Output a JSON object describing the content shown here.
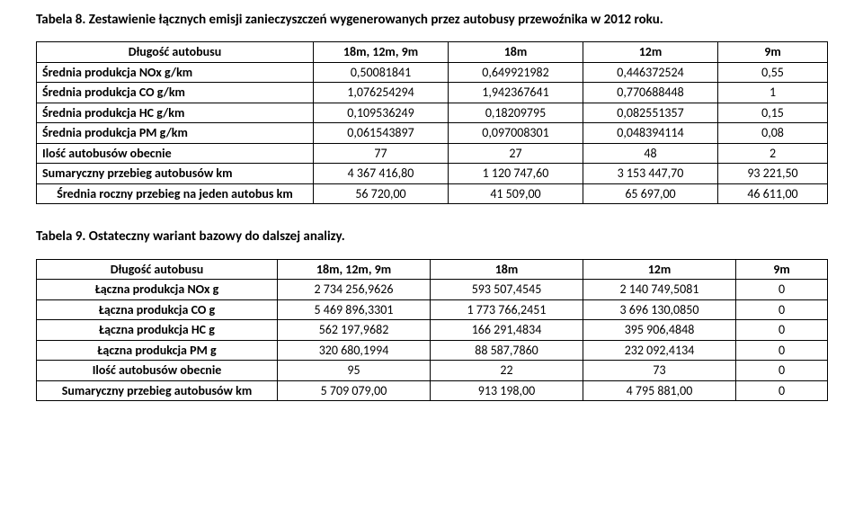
{
  "caption1_a": "Tabela 8.",
  "caption1_b": " Zestawienie łącznych emisji zanieczyszczeń wygenerowanych przez autobusy przewoźnika w 2012 roku.",
  "t1": {
    "cols": [
      "Długość autobusu",
      "18m, 12m, 9m",
      "18m",
      "12m",
      "9m"
    ],
    "rows": [
      {
        "label": "Średnia produkcja NOx g/km",
        "v": [
          "0,50081841",
          "0,649921982",
          "0,446372524",
          "0,55"
        ]
      },
      {
        "label": "Średnia produkcja CO g/km",
        "v": [
          "1,076254294",
          "1,942367641",
          "0,770688448",
          "1"
        ]
      },
      {
        "label": "Średnia produkcja HC g/km",
        "v": [
          "0,109536249",
          "0,18209795",
          "0,082551357",
          "0,15"
        ]
      },
      {
        "label": "Średnia produkcja PM g/km",
        "v": [
          "0,061543897",
          "0,097008301",
          "0,048394114",
          "0,08"
        ]
      },
      {
        "label": "Ilość autobusów obecnie",
        "v": [
          "77",
          "27",
          "48",
          "2"
        ]
      },
      {
        "label": "Sumaryczny przebieg autobusów km",
        "v": [
          "4 367 416,80",
          "1 120 747,60",
          "3 153 447,70",
          "93 221,50"
        ]
      },
      {
        "label": "Średnia roczny przebieg na jeden autobus km",
        "v": [
          "56 720,00",
          "41 509,00",
          "65 697,00",
          "46 611,00"
        ]
      }
    ]
  },
  "caption2_a": "Tabela 9.",
  "caption2_b": " Ostateczny wariant bazowy do dalszej analizy.",
  "t2": {
    "cols": [
      "Długość autobusu",
      "18m, 12m, 9m",
      "18m",
      "12m",
      "9m"
    ],
    "rows": [
      {
        "label": "Łączna produkcja NOx g",
        "v": [
          "2 734 256,9626",
          "593 507,4545",
          "2 140 749,5081",
          "0"
        ]
      },
      {
        "label": "Łączna produkcja CO g",
        "v": [
          "5 469 896,3301",
          "1 773 766,2451",
          "3 696 130,0850",
          "0"
        ]
      },
      {
        "label": "Łączna produkcja HC g",
        "v": [
          "562 197,9682",
          "166 291,4834",
          "395 906,4848",
          "0"
        ]
      },
      {
        "label": "Łączna produkcja PM g",
        "v": [
          "320 680,1994",
          "88 587,7860",
          "232 092,4134",
          "0"
        ]
      },
      {
        "label": "Ilość autobusów obecnie",
        "v": [
          "95",
          "22",
          "73",
          "0"
        ]
      },
      {
        "label": "Sumaryczny przebieg autobusów km",
        "v": [
          "5 709 079,00",
          "913 198,00",
          "4 795 881,00",
          "0"
        ]
      }
    ]
  }
}
